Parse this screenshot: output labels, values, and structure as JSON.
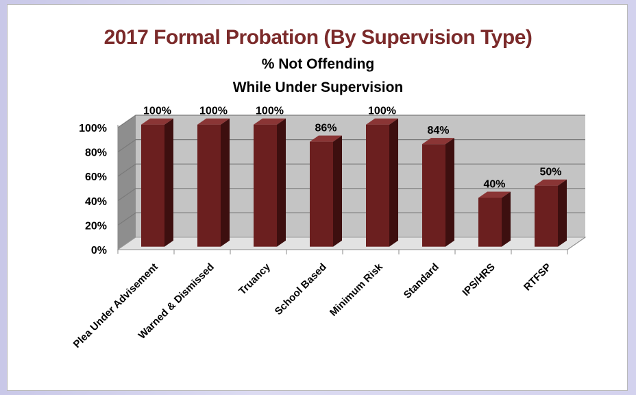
{
  "chart_data": {
    "type": "bar",
    "title": "2017 Formal Probation (By Supervision Type)",
    "subtitle_lines": [
      "% Not Offending",
      "While Under Supervision"
    ],
    "categories": [
      "Plea Under Advisement",
      "Warned & Dismissed",
      "Truancy",
      "School Based",
      "Minimum Risk",
      "Standard",
      "IPS/HRS",
      "RTFSP"
    ],
    "values": [
      100,
      100,
      100,
      86,
      100,
      84,
      40,
      50
    ],
    "data_labels": [
      "100%",
      "100%",
      "100%",
      "86%",
      "100%",
      "84%",
      "40%",
      "50%"
    ],
    "yticks": [
      "0%",
      "20%",
      "40%",
      "60%",
      "80%",
      "100%"
    ],
    "ylim": [
      0,
      100
    ],
    "grid": true,
    "bar_color": "#6b1f1f",
    "wall_color": "#c4c4c4"
  }
}
